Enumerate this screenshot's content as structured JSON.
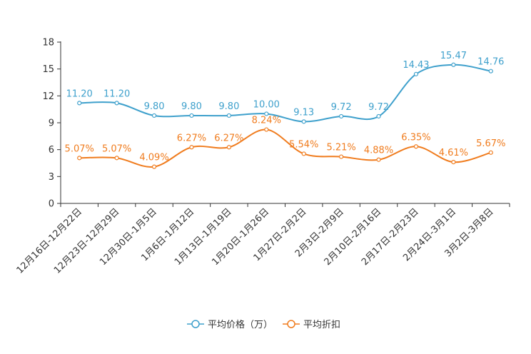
{
  "chart_data": {
    "type": "line",
    "title": "",
    "xlabel": "",
    "ylabel": "",
    "ylim": [
      0,
      18
    ],
    "yticks": [
      0,
      3,
      6,
      9,
      12,
      15,
      18
    ],
    "grid": false,
    "legend_position": "bottom-center",
    "categories": [
      "12月16日-12月22日",
      "12月23日-12月29日",
      "12月30日-1月5日",
      "1月6日-1月12日",
      "1月13日-1月19日",
      "1月20日-1月26日",
      "1月27日-2月2日",
      "2月3日-2月9日",
      "2月10日-2月16日",
      "2月17日-2月23日",
      "2月24日-3月1日",
      "3月2日-3月8日"
    ],
    "series": [
      {
        "name": "平均价格（万）",
        "color": "#3ea0cc",
        "values": [
          11.2,
          11.2,
          9.8,
          9.8,
          9.8,
          10.0,
          9.13,
          9.72,
          9.72,
          14.43,
          15.47,
          14.76
        ],
        "labels": [
          "11.20",
          "11.20",
          "9.80",
          "9.80",
          "9.80",
          "10.00",
          "9.13",
          "9.72",
          "9.72",
          "14.43",
          "15.47",
          "14.76"
        ]
      },
      {
        "name": "平均折扣",
        "color": "#f07c1e",
        "values": [
          5.07,
          5.07,
          4.09,
          6.27,
          6.27,
          8.24,
          5.54,
          5.21,
          4.88,
          6.35,
          4.61,
          5.67
        ],
        "labels": [
          "5.07%",
          "5.07%",
          "4.09%",
          "6.27%",
          "6.27%",
          "8.24%",
          "5.54%",
          "5.21%",
          "4.88%",
          "6.35%",
          "4.61%",
          "5.67%"
        ]
      }
    ]
  }
}
